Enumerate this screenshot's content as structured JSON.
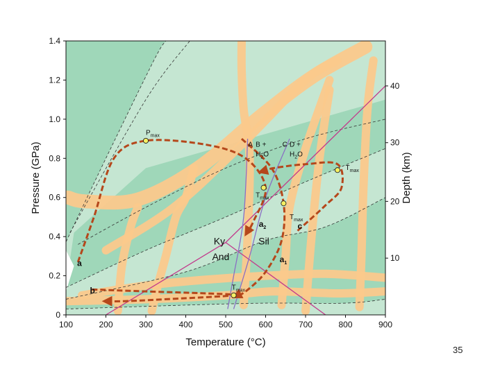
{
  "slide": {
    "page_number": "35"
  },
  "colors": {
    "background_field": "#c5e6d2",
    "facies_band": "#9fd7b9",
    "reaction_band": "#fbc98c",
    "ptt_path": "#b5471b",
    "reaction_line_magenta": "#c23a8c",
    "reaction_line_violet": "#8a6fc4",
    "marker": "#f4ef63"
  },
  "chart_data": {
    "type": "line",
    "title": "",
    "xlabel": "Temperature (°C)",
    "ylabel": "Pressure (GPa)",
    "y2label": "Depth (km)",
    "xlim": [
      100,
      900
    ],
    "ylim": [
      0,
      1.4
    ],
    "xticks": [
      "100",
      "200",
      "300",
      "400",
      "500",
      "600",
      "700",
      "800",
      "900"
    ],
    "yticks": [
      "0",
      "0.2",
      "0.4",
      "0.6",
      "0.8",
      "1.0",
      "1.2",
      "1.4"
    ],
    "y2ticks": [
      {
        "label": "10",
        "pressure": 0.29
      },
      {
        "label": "20",
        "pressure": 0.58
      },
      {
        "label": "30",
        "pressure": 0.88
      },
      {
        "label": "40",
        "pressure": 1.17
      }
    ],
    "grid": false,
    "facies_boundaries": [
      [
        [
          90,
          0.33
        ],
        [
          200,
          0.8
        ],
        [
          320,
          1.3
        ],
        [
          350,
          1.4
        ]
      ],
      [
        [
          110,
          0.42
        ],
        [
          300,
          1.1
        ],
        [
          410,
          1.4
        ]
      ],
      [
        [
          100,
          0.14
        ],
        [
          300,
          0.33
        ],
        [
          500,
          0.5
        ],
        [
          700,
          0.68
        ],
        [
          900,
          0.85
        ]
      ],
      [
        [
          100,
          0.08
        ],
        [
          400,
          0.22
        ],
        [
          600,
          0.38
        ],
        [
          750,
          0.45
        ],
        [
          900,
          0.6
        ]
      ],
      [
        [
          100,
          0.03
        ],
        [
          400,
          0.05
        ],
        [
          600,
          0.06
        ],
        [
          800,
          0.06
        ],
        [
          900,
          0.08
        ]
      ],
      [
        [
          130,
          0.36
        ],
        [
          300,
          0.55
        ],
        [
          500,
          0.75
        ],
        [
          700,
          0.9
        ],
        [
          900,
          1.0
        ]
      ]
    ],
    "reaction_bands": [
      [
        [
          105,
          0.6
        ],
        [
          150,
          0.58
        ],
        [
          280,
          0.59
        ],
        [
          430,
          0.75
        ],
        [
          590,
          1.02
        ],
        [
          720,
          1.22
        ],
        [
          850,
          1.37
        ]
      ],
      [
        [
          200,
          0.33
        ],
        [
          370,
          0.55
        ],
        [
          540,
          0.87
        ],
        [
          700,
          1.2
        ],
        [
          780,
          1.3
        ]
      ],
      [
        [
          545,
          0.05
        ],
        [
          555,
          0.4
        ],
        [
          560,
          0.8
        ],
        [
          545,
          1.05
        ],
        [
          540,
          1.25
        ],
        [
          540,
          1.4
        ]
      ],
      [
        [
          640,
          0.05
        ],
        [
          650,
          0.3
        ],
        [
          660,
          0.55
        ],
        [
          700,
          0.85
        ],
        [
          760,
          1.2
        ]
      ],
      [
        [
          700,
          0.02
        ],
        [
          715,
          0.4
        ],
        [
          735,
          0.8
        ],
        [
          760,
          1.15
        ]
      ],
      [
        [
          835,
          0.04
        ],
        [
          840,
          0.3
        ],
        [
          845,
          0.65
        ],
        [
          855,
          1.05
        ],
        [
          870,
          1.3
        ]
      ],
      [
        [
          230,
          0.02
        ],
        [
          240,
          0.25
        ],
        [
          262,
          0.45
        ],
        [
          280,
          0.55
        ]
      ],
      [
        [
          315,
          0.02
        ],
        [
          330,
          0.15
        ],
        [
          350,
          0.3
        ],
        [
          375,
          0.5
        ],
        [
          400,
          0.6
        ],
        [
          420,
          0.75
        ]
      ],
      [
        [
          140,
          0.1
        ],
        [
          300,
          0.15
        ],
        [
          450,
          0.18
        ],
        [
          600,
          0.2
        ],
        [
          750,
          0.21
        ],
        [
          900,
          0.19
        ]
      ],
      [
        [
          100,
          0.07
        ],
        [
          300,
          0.08
        ],
        [
          500,
          0.1
        ],
        [
          620,
          0.12
        ],
        [
          780,
          0.11
        ],
        [
          900,
          0.12
        ]
      ]
    ],
    "series": [
      {
        "label": "a",
        "points": [
          [
            130,
            0.27
          ],
          [
            170,
            0.5
          ],
          [
            220,
            0.8
          ],
          [
            300,
            0.89
          ],
          [
            450,
            0.87
          ],
          [
            550,
            0.8
          ],
          [
            600,
            0.65
          ],
          [
            570,
            0.48
          ],
          [
            550,
            0.41
          ]
        ]
      },
      {
        "label": "a",
        "points": [
          [
            540,
            0.9
          ],
          [
            615,
            0.75
          ],
          [
            645,
            0.57
          ],
          [
            640,
            0.38
          ],
          [
            600,
            0.22
          ],
          [
            550,
            0.12
          ],
          [
            520,
            0.09
          ]
        ]
      },
      {
        "label": "b",
        "points": [
          [
            165,
            0.13
          ],
          [
            300,
            0.12
          ],
          [
            450,
            0.11
          ],
          [
            520,
            0.1
          ],
          [
            350,
            0.08
          ],
          [
            245,
            0.07
          ],
          [
            195,
            0.07
          ]
        ]
      },
      {
        "label": "c",
        "points": [
          [
            680,
            0.43
          ],
          [
            750,
            0.56
          ],
          [
            790,
            0.65
          ],
          [
            780,
            0.77
          ],
          [
            700,
            0.77
          ],
          [
            620,
            0.75
          ],
          [
            585,
            0.73
          ]
        ]
      }
    ],
    "annotations": [
      {
        "text": "a",
        "x": 128,
        "y": 0.25
      },
      {
        "text": "b",
        "x": 160,
        "y": 0.11
      },
      {
        "text": "c",
        "x": 680,
        "y": 0.44
      },
      {
        "text": "a",
        "sub": "2",
        "x": 583,
        "y": 0.45
      },
      {
        "text": "a",
        "sub": "1",
        "x": 635,
        "y": 0.27
      },
      {
        "text": "P",
        "sub": "max",
        "x": 300,
        "y": 0.92
      },
      {
        "text": "T",
        "sub": "max",
        "x": 575,
        "y": 0.6
      },
      {
        "text": "T",
        "sub": "max",
        "x": 660,
        "y": 0.49
      },
      {
        "text": "T",
        "sub": "max",
        "x": 800,
        "y": 0.74
      },
      {
        "text": "T",
        "sub": "max",
        "x": 515,
        "y": 0.13
      },
      {
        "text": "A",
        "x": 556,
        "y": 0.86
      },
      {
        "text": "B +",
        "x": 575,
        "y": 0.86
      },
      {
        "text": "H",
        "sub": "2",
        "tail": "O",
        "x": 575,
        "y": 0.81
      },
      {
        "text": "C",
        "x": 642,
        "y": 0.86
      },
      {
        "text": "D +",
        "x": 660,
        "y": 0.86
      },
      {
        "text": "H",
        "sub": "2",
        "tail": "O",
        "x": 660,
        "y": 0.81
      },
      {
        "text": "Ky",
        "x": 470,
        "y": 0.36
      },
      {
        "text": "Sil",
        "x": 582,
        "y": 0.36
      },
      {
        "text": "And",
        "x": 466,
        "y": 0.28
      }
    ],
    "peak_markers": [
      [
        300,
        0.89
      ],
      [
        595,
        0.65
      ],
      [
        645,
        0.57
      ],
      [
        780,
        0.74
      ],
      [
        520,
        0.1
      ]
    ],
    "reaction_lines": [
      {
        "role": "Ky-Sil",
        "color_key": "reaction_line_magenta",
        "points": [
          [
            500,
            0.37
          ],
          [
            900,
            1.17
          ]
        ]
      },
      {
        "role": "Ky-And",
        "color_key": "reaction_line_magenta",
        "points": [
          [
            200,
            0.0
          ],
          [
            500,
            0.37
          ]
        ]
      },
      {
        "role": "And-Sil",
        "color_key": "reaction_line_magenta",
        "points": [
          [
            500,
            0.37
          ],
          [
            750,
            0.0
          ]
        ]
      },
      {
        "role": "A = B + H2O",
        "color_key": "reaction_line_violet",
        "points": [
          [
            555,
            0.9
          ],
          [
            545,
            0.5
          ],
          [
            520,
            0.2
          ],
          [
            505,
            0.03
          ]
        ]
      },
      {
        "role": "C = D + H2O",
        "color_key": "reaction_line_violet",
        "points": [
          [
            660,
            0.9
          ],
          [
            600,
            0.6
          ],
          [
            560,
            0.3
          ],
          [
            520,
            0.03
          ]
        ]
      }
    ]
  }
}
